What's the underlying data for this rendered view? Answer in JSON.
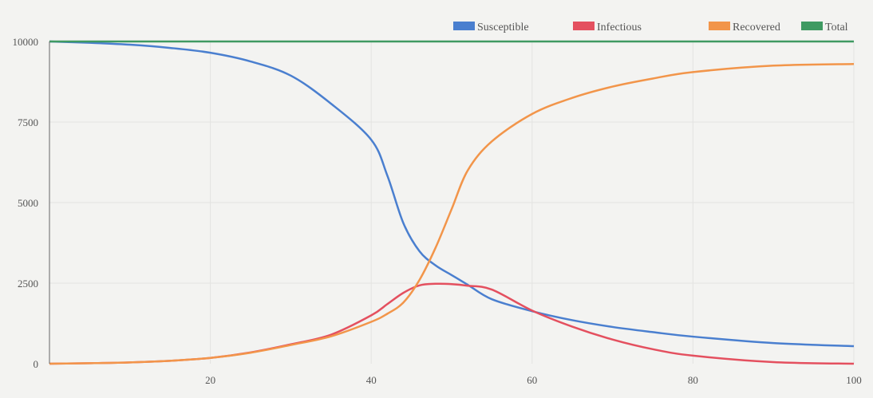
{
  "chart_data": {
    "type": "line",
    "title": "",
    "xlabel": "",
    "ylabel": "",
    "xlim": [
      0,
      100
    ],
    "ylim": [
      0,
      10000
    ],
    "xticks": [
      20,
      40,
      60,
      80,
      100
    ],
    "yticks": [
      0,
      2500,
      5000,
      7500,
      10000
    ],
    "grid": true,
    "legend_position": "top-right",
    "x": [
      0,
      5,
      10,
      15,
      20,
      25,
      30,
      35,
      40,
      42,
      44,
      46,
      48,
      50,
      52,
      55,
      60,
      65,
      70,
      75,
      80,
      90,
      100
    ],
    "series": [
      {
        "name": "Susceptible",
        "color": "#4a7fcf",
        "values": [
          10000,
          9960,
          9900,
          9800,
          9650,
          9380,
          8940,
          8070,
          6950,
          5840,
          4360,
          3490,
          3050,
          2750,
          2450,
          2000,
          1630,
          1350,
          1140,
          980,
          840,
          640,
          545
        ]
      },
      {
        "name": "Infectious",
        "color": "#e4505f",
        "values": [
          0,
          15,
          40,
          90,
          180,
          350,
          600,
          900,
          1500,
          1850,
          2200,
          2430,
          2480,
          2470,
          2420,
          2300,
          1650,
          1150,
          750,
          450,
          250,
          50,
          0
        ]
      },
      {
        "name": "Recovered",
        "color": "#f2954a",
        "values": [
          0,
          15,
          40,
          90,
          180,
          340,
          580,
          850,
          1300,
          1550,
          1900,
          2600,
          3600,
          4800,
          6000,
          6900,
          7750,
          8250,
          8600,
          8850,
          9050,
          9250,
          9300
        ]
      },
      {
        "name": "Total",
        "color": "#3f9a62",
        "values": [
          10000,
          10000,
          10000,
          10000,
          10000,
          10000,
          10000,
          10000,
          10000,
          10000,
          10000,
          10000,
          10000,
          10000,
          10000,
          10000,
          10000,
          10000,
          10000,
          10000,
          10000,
          10000,
          10000
        ]
      }
    ]
  }
}
